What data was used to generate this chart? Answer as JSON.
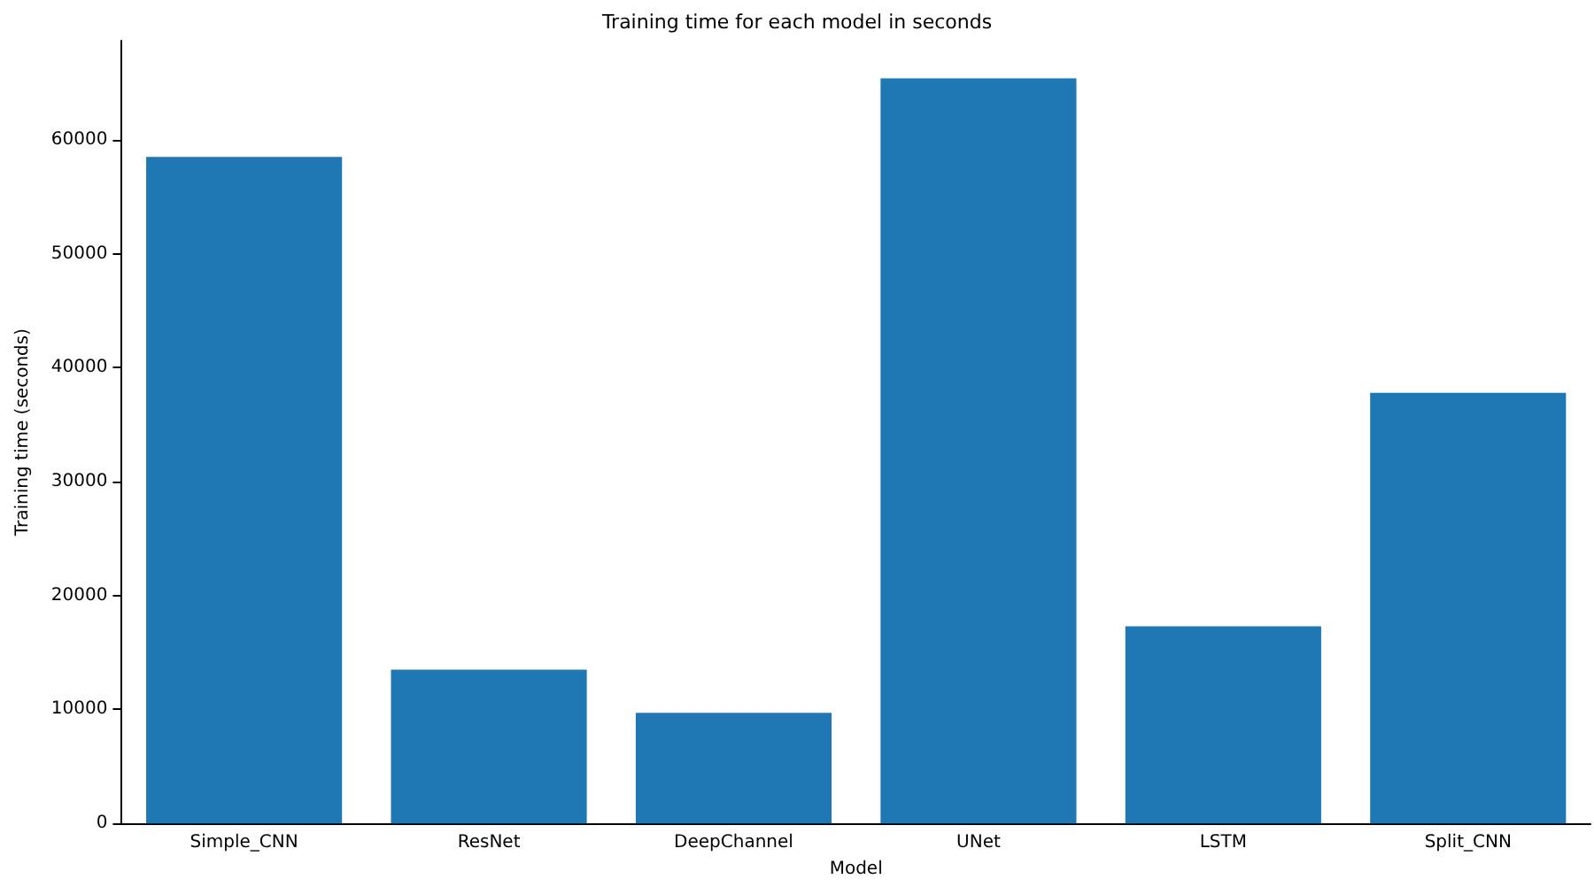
{
  "chart_data": {
    "type": "bar",
    "title": "Training time for each model in seconds",
    "xlabel": "Model",
    "ylabel": "Training time (seconds)",
    "categories": [
      "Simple_CNN",
      "ResNet",
      "DeepChannel",
      "UNet",
      "LSTM",
      "Split_CNN"
    ],
    "values": [
      58500,
      13500,
      9700,
      65400,
      17300,
      37800
    ],
    "color": "#1f77b4",
    "ylim": [
      0,
      68700
    ],
    "yticks": [
      0,
      10000,
      20000,
      30000,
      40000,
      50000,
      60000
    ],
    "grid": false
  }
}
